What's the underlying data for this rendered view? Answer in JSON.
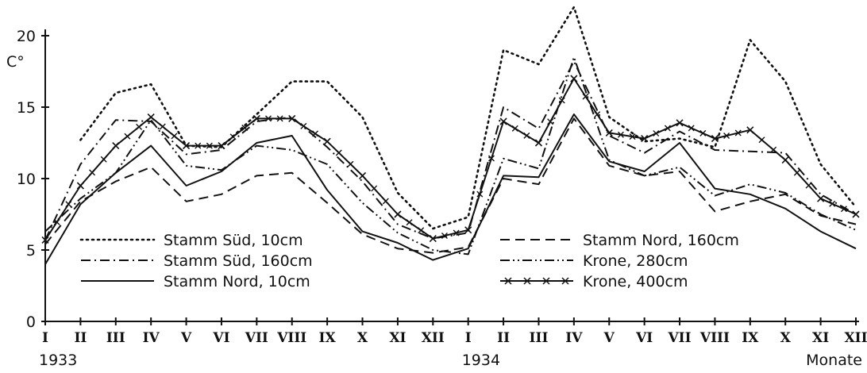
{
  "chart_data": {
    "type": "line",
    "ylabel": "C°",
    "xlabel": "Monate",
    "ylim": [
      0,
      20
    ],
    "yticks": [
      "0",
      "5",
      "10",
      "15",
      "20"
    ],
    "year_labels": [
      {
        "label": "1933",
        "at_index": 0
      },
      {
        "label": "1934",
        "at_index": 12
      }
    ],
    "categories": [
      "I",
      "II",
      "III",
      "IV",
      "V",
      "VI",
      "VII",
      "VIII",
      "IX",
      "X",
      "XI",
      "XII",
      "I",
      "II",
      "III",
      "IV",
      "V",
      "VI",
      "VII",
      "VIII",
      "IX",
      "X",
      "XI",
      "XII"
    ],
    "series": [
      {
        "name": "Stamm Süd, 10cm",
        "style": "dotted",
        "values": [
          null,
          12.7,
          16.0,
          16.6,
          12.3,
          12.2,
          14.5,
          16.8,
          16.8,
          14.3,
          9.0,
          6.5,
          7.3,
          19.0,
          18.0,
          22.0,
          14.3,
          12.6,
          12.8,
          12.2,
          19.7,
          16.8,
          11.0,
          8.0
        ]
      },
      {
        "name": "Stamm Süd, 160cm",
        "style": "dashdot",
        "values": [
          5.7,
          11.0,
          14.1,
          14.0,
          11.7,
          12.0,
          14.0,
          14.3,
          12.2,
          9.8,
          6.8,
          5.8,
          6.2,
          15.0,
          13.5,
          18.2,
          13.0,
          11.8,
          13.3,
          12.0,
          11.9,
          11.8,
          8.9,
          7.5
        ]
      },
      {
        "name": "Stamm Nord, 10cm",
        "style": "solid",
        "values": [
          4.0,
          8.2,
          10.4,
          12.3,
          9.5,
          10.5,
          12.5,
          13.0,
          9.2,
          6.3,
          5.5,
          4.3,
          5.1,
          10.2,
          10.1,
          14.5,
          11.2,
          10.5,
          12.5,
          9.3,
          8.9,
          7.9,
          6.3,
          5.1
        ]
      },
      {
        "name": "Stamm Nord, 160cm",
        "style": "dashed",
        "values": [
          5.4,
          8.4,
          9.8,
          10.8,
          8.4,
          8.9,
          10.2,
          10.4,
          8.3,
          6.1,
          5.1,
          4.8,
          5.2,
          10.0,
          9.6,
          14.2,
          10.9,
          10.2,
          10.5,
          7.7,
          8.4,
          8.9,
          7.4,
          6.8
        ]
      },
      {
        "name": "Krone, 280cm",
        "style": "dashdotdot",
        "values": [
          6.3,
          8.6,
          10.4,
          14.1,
          10.9,
          10.6,
          12.3,
          12.0,
          11.0,
          8.3,
          6.2,
          5.0,
          4.7,
          11.4,
          10.7,
          18.5,
          11.3,
          10.2,
          10.8,
          8.8,
          9.6,
          9.0,
          7.5,
          6.4
        ]
      },
      {
        "name": "Krone, 400cm",
        "style": "crossed",
        "values": [
          5.7,
          9.5,
          12.3,
          14.3,
          12.3,
          12.3,
          14.2,
          14.2,
          12.6,
          10.2,
          7.5,
          5.8,
          6.4,
          14.0,
          12.5,
          17.0,
          13.2,
          12.8,
          13.9,
          12.8,
          13.4,
          11.3,
          8.6,
          7.5
        ]
      }
    ],
    "legend": {
      "left": [
        "Stamm Süd, 10cm",
        "Stamm Süd, 160cm",
        "Stamm Nord, 10cm"
      ],
      "right": [
        "Stamm Nord, 160cm",
        "Krone, 280cm",
        "Krone, 400cm"
      ]
    },
    "grid": false,
    "colors": {
      "line": "#111111",
      "background": "#ffffff"
    }
  }
}
